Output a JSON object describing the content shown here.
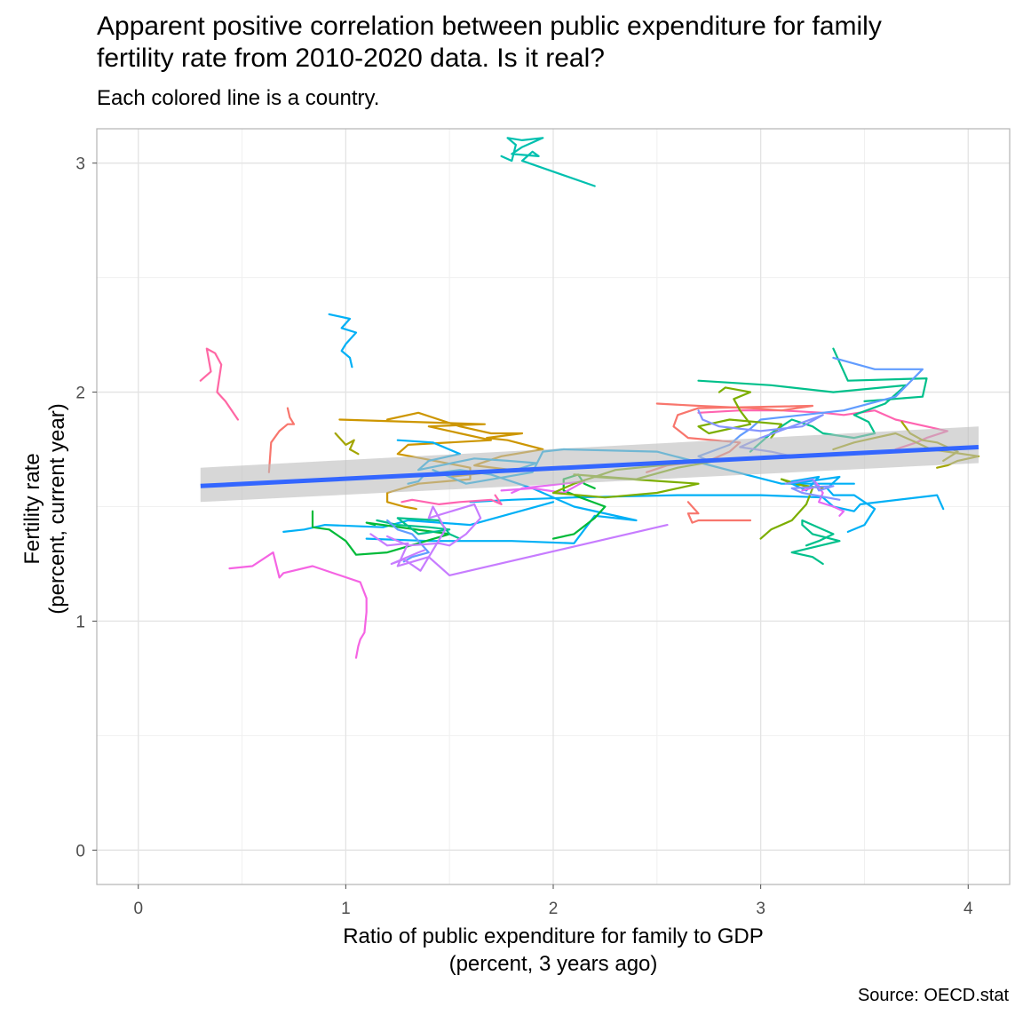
{
  "title_line1": "Apparent positive correlation between public expenditure for family",
  "title_line2": "fertility rate from 2010-2020 data. Is it real?",
  "subtitle": "Each colored line is a country.",
  "caption": "Source: OECD.stat",
  "chart_data": {
    "type": "line",
    "xlabel_line1": "Ratio of public expenditure for family to GDP",
    "xlabel_line2": "(percent, 3 years ago)",
    "ylabel_line1": "Fertility rate",
    "ylabel_line2": "(percent, current year)",
    "xlim": [
      -0.2,
      4.2
    ],
    "ylim": [
      -0.15,
      3.15
    ],
    "xticks": [
      0,
      1,
      2,
      3,
      4
    ],
    "yticks": [
      0,
      1,
      2,
      3
    ],
    "grid": true,
    "legend": "none",
    "trend": {
      "color": "#3366ff",
      "band_color": "#bdbdbd",
      "x": [
        0.3,
        4.05
      ],
      "y": [
        1.59,
        1.76
      ],
      "lower": [
        1.52,
        1.69
      ],
      "upper": [
        1.67,
        1.85
      ]
    },
    "series": [
      {
        "color": "#00c0af",
        "x": [
          1.75,
          1.8,
          1.82,
          1.78,
          1.85,
          1.95,
          1.85,
          1.8,
          1.93,
          1.9,
          1.85,
          2.2
        ],
        "y": [
          3.03,
          3.01,
          3.08,
          3.11,
          3.1,
          3.11,
          3.07,
          3.04,
          3.03,
          3.05,
          3.01,
          2.9
        ]
      },
      {
        "color": "#00b0f6",
        "x": [
          0.92,
          1.02,
          0.98,
          1.05,
          1.0,
          0.98,
          1.02,
          1.03
        ],
        "y": [
          2.34,
          2.32,
          2.28,
          2.26,
          2.21,
          2.18,
          2.15,
          2.11
        ]
      },
      {
        "color": "#ff67a4",
        "x": [
          0.3,
          0.35,
          0.33,
          0.37,
          0.4,
          0.38,
          0.42,
          0.48
        ],
        "y": [
          2.05,
          2.09,
          2.19,
          2.17,
          2.12,
          2.0,
          1.96,
          1.88
        ]
      },
      {
        "color": "#f8766d",
        "x": [
          0.63,
          0.64,
          0.68,
          0.72,
          0.75,
          0.73,
          0.72
        ],
        "y": [
          1.65,
          1.78,
          1.83,
          1.86,
          1.86,
          1.89,
          1.93
        ]
      },
      {
        "color": "#cd9600",
        "x": [
          0.97,
          1.67,
          1.4,
          1.55,
          1.7,
          1.3,
          1.25,
          1.37,
          1.6,
          1.6,
          1.35,
          1.2,
          1.2,
          1.28,
          1.34
        ],
        "y": [
          1.88,
          1.86,
          1.85,
          1.82,
          1.79,
          1.77,
          1.73,
          1.71,
          1.67,
          1.62,
          1.6,
          1.56,
          1.52,
          1.5,
          1.49
        ]
      },
      {
        "color": "#cd9600",
        "x": [
          1.2,
          1.35,
          1.55,
          1.7,
          1.85,
          1.68,
          1.78,
          1.95,
          1.75,
          1.62,
          1.8,
          1.5
        ],
        "y": [
          1.88,
          1.91,
          1.85,
          1.82,
          1.82,
          1.8,
          1.79,
          1.75,
          1.72,
          1.68,
          1.66,
          1.63
        ]
      },
      {
        "color": "#a3a500",
        "x": [
          0.95,
          1.0,
          1.04,
          1.02,
          1.06
        ],
        "y": [
          1.82,
          1.77,
          1.79,
          1.75,
          1.73
        ]
      },
      {
        "color": "#f564e3",
        "x": [
          0.44,
          0.55,
          0.65,
          0.68,
          0.7,
          0.84,
          1.07,
          1.1,
          1.1,
          1.09,
          1.07,
          1.06,
          1.05
        ],
        "y": [
          1.23,
          1.24,
          1.3,
          1.19,
          1.21,
          1.24,
          1.17,
          1.1,
          1.04,
          0.95,
          0.92,
          0.89,
          0.84
        ]
      },
      {
        "color": "#00b0f6",
        "x": [
          1.25,
          1.42,
          1.55,
          1.4,
          1.35,
          1.62,
          1.78,
          1.92,
          1.82
        ],
        "y": [
          1.79,
          1.78,
          1.73,
          1.7,
          1.66,
          1.71,
          1.7,
          1.69,
          1.66
        ]
      },
      {
        "color": "#00b0f6",
        "x": [
          1.42,
          1.58,
          1.9,
          1.95,
          2.05,
          2.5,
          3.1,
          3.45
        ],
        "y": [
          1.66,
          1.6,
          1.65,
          1.74,
          1.75,
          1.74,
          1.6,
          1.6
        ]
      },
      {
        "color": "#00b0f6",
        "x": [
          1.6,
          1.8,
          2.1,
          2.6,
          3.0,
          3.3,
          3.35,
          3.45,
          3.48,
          3.85,
          3.88
        ],
        "y": [
          1.52,
          1.53,
          1.54,
          1.55,
          1.55,
          1.54,
          1.5,
          1.48,
          1.51,
          1.55,
          1.49
        ]
      },
      {
        "color": "#00b0f6",
        "x": [
          0.7,
          0.8,
          0.9,
          1.18,
          1.3,
          1.6,
          2.0
        ],
        "y": [
          1.39,
          1.4,
          1.42,
          1.41,
          1.44,
          1.42,
          1.52
        ]
      },
      {
        "color": "#00b0f6",
        "x": [
          1.1,
          1.4,
          1.8,
          2.1,
          2.2,
          2.4,
          2.1,
          1.9,
          1.7,
          1.55,
          1.38,
          1.35,
          1.3
        ],
        "y": [
          1.36,
          1.35,
          1.35,
          1.34,
          1.46,
          1.44,
          1.5,
          1.58,
          1.64,
          1.66,
          1.64,
          1.61,
          1.6
        ]
      },
      {
        "color": "#00ba38",
        "x": [
          0.84,
          0.84,
          0.92,
          1.0,
          1.05,
          1.2,
          1.5,
          1.1,
          1.14
        ],
        "y": [
          1.48,
          1.41,
          1.4,
          1.35,
          1.29,
          1.3,
          1.38,
          1.43,
          1.42
        ]
      },
      {
        "color": "#00ba38",
        "x": [
          2.0,
          2.1,
          2.2,
          2.25,
          2.13,
          2.05,
          2.05,
          2.12,
          2.15,
          2.2
        ],
        "y": [
          1.36,
          1.38,
          1.45,
          1.5,
          1.54,
          1.57,
          1.62,
          1.64,
          1.6,
          1.58
        ]
      },
      {
        "color": "#00c08b",
        "x": [
          1.15,
          1.25,
          1.4,
          1.5,
          1.35,
          1.25,
          1.45,
          1.5,
          1.55
        ],
        "y": [
          1.44,
          1.42,
          1.41,
          1.4,
          1.38,
          1.45,
          1.44,
          1.38,
          1.36
        ]
      },
      {
        "color": "#619cff",
        "x": [
          1.2,
          1.25,
          1.32,
          1.37,
          1.4,
          1.32,
          1.28
        ],
        "y": [
          1.44,
          1.4,
          1.38,
          1.33,
          1.3,
          1.28,
          1.26
        ]
      },
      {
        "color": "#c77cff",
        "x": [
          1.2,
          1.3,
          1.45,
          1.5,
          1.58,
          1.65,
          1.62,
          1.4,
          1.42,
          1.48,
          1.36,
          1.28,
          1.22,
          1.35,
          1.38
        ],
        "y": [
          1.37,
          1.33,
          1.34,
          1.33,
          1.38,
          1.45,
          1.51,
          1.45,
          1.5,
          1.4,
          1.22,
          1.27,
          1.25,
          1.3,
          1.31
        ]
      },
      {
        "color": "#c77cff",
        "x": [
          1.12,
          1.2,
          1.3,
          1.28,
          1.25,
          1.4,
          1.45,
          1.5,
          2.55
        ],
        "y": [
          1.38,
          1.33,
          1.34,
          1.3,
          1.24,
          1.28,
          1.24,
          1.2,
          1.42
        ]
      },
      {
        "color": "#ff64b0",
        "x": [
          1.27,
          1.32,
          1.45,
          1.55,
          1.7,
          1.75,
          1.72
        ],
        "y": [
          1.52,
          1.53,
          1.51,
          1.52,
          1.53,
          1.51,
          1.55
        ]
      },
      {
        "color": "#ff64b0",
        "x": [
          2.7,
          2.9,
          3.1,
          3.3,
          3.4,
          3.55,
          3.65,
          3.75,
          3.9,
          3.8,
          3.75,
          3.65
        ],
        "y": [
          1.91,
          1.92,
          1.92,
          1.91,
          1.9,
          1.92,
          1.88,
          1.86,
          1.83,
          1.8,
          1.78,
          1.75
        ]
      },
      {
        "color": "#e76bf3",
        "x": [
          1.75,
          1.9,
          2.05,
          2.15,
          1.85,
          1.8
        ],
        "y": [
          1.57,
          1.58,
          1.56,
          1.61,
          1.58,
          1.56
        ]
      },
      {
        "color": "#f8766d",
        "x": [
          2.5,
          2.7,
          2.95,
          3.1,
          3.25,
          2.7,
          2.6,
          2.58,
          2.65,
          2.9,
          2.85,
          2.75,
          2.55,
          2.45
        ],
        "y": [
          1.95,
          1.94,
          1.93,
          1.92,
          1.94,
          1.93,
          1.9,
          1.85,
          1.8,
          1.78,
          1.74,
          1.7,
          1.68,
          1.65
        ]
      },
      {
        "color": "#f8766d",
        "x": [
          2.65,
          2.68,
          2.7,
          2.65,
          2.67,
          2.7,
          2.95
        ],
        "y": [
          1.52,
          1.49,
          1.47,
          1.47,
          1.43,
          1.44,
          1.44
        ]
      },
      {
        "color": "#00c08b",
        "x": [
          2.7,
          3.05,
          3.35,
          3.7,
          3.6,
          3.45,
          3.52,
          3.55,
          3.45,
          3.3,
          3.25,
          3.15,
          3.1,
          3.05,
          3.0,
          2.95
        ],
        "y": [
          2.05,
          2.03,
          2.0,
          2.03,
          1.95,
          1.9,
          1.87,
          1.82,
          1.8,
          1.82,
          1.85,
          1.88,
          1.85,
          1.82,
          1.78,
          1.74
        ]
      },
      {
        "color": "#00c08b",
        "x": [
          3.35,
          3.42,
          3.8,
          3.78,
          3.5
        ],
        "y": [
          2.19,
          2.05,
          2.06,
          1.98,
          1.96
        ]
      },
      {
        "color": "#619cff",
        "x": [
          3.35,
          3.55,
          3.78,
          3.65,
          3.4,
          3.0,
          2.95,
          2.9,
          2.85,
          2.7,
          2.75
        ],
        "y": [
          2.15,
          2.1,
          2.1,
          1.98,
          1.92,
          1.88,
          1.84,
          1.81,
          1.77,
          1.72,
          1.7
        ]
      },
      {
        "color": "#7cae00",
        "x": [
          2.8,
          2.83,
          2.95,
          2.87,
          2.9,
          2.95,
          2.75,
          2.7,
          2.85,
          3.1,
          3.05
        ],
        "y": [
          2.0,
          2.02,
          2.0,
          1.97,
          1.92,
          1.86,
          1.82,
          1.85,
          1.88,
          1.86,
          1.8
        ]
      },
      {
        "color": "#7cae00",
        "x": [
          2.1,
          2.4,
          2.6,
          2.85,
          2.3,
          2.1,
          2.0,
          2.25,
          2.5,
          2.7,
          2.2
        ],
        "y": [
          1.64,
          1.62,
          1.67,
          1.71,
          1.66,
          1.6,
          1.56,
          1.54,
          1.56,
          1.6,
          1.63
        ]
      },
      {
        "color": "#7cae00",
        "x": [
          3.3,
          3.15,
          3.1,
          3.25,
          3.22,
          3.15,
          3.05,
          3.0
        ],
        "y": [
          1.58,
          1.6,
          1.62,
          1.58,
          1.51,
          1.44,
          1.4,
          1.36
        ]
      },
      {
        "color": "#00b0f6",
        "x": [
          3.15,
          3.28,
          3.22,
          3.15,
          3.38,
          3.32,
          3.35,
          3.45,
          3.55,
          3.5,
          3.42
        ],
        "y": [
          1.61,
          1.63,
          1.57,
          1.6,
          1.63,
          1.58,
          1.55,
          1.55,
          1.49,
          1.42,
          1.39
        ]
      },
      {
        "color": "#00c08b",
        "x": [
          3.3,
          3.25,
          3.15,
          3.38,
          3.25,
          3.2,
          3.2,
          3.3,
          3.35,
          3.28,
          3.22
        ],
        "y": [
          1.25,
          1.28,
          1.3,
          1.35,
          1.38,
          1.42,
          1.44,
          1.4,
          1.38,
          1.35,
          1.33
        ]
      },
      {
        "color": "#a3a500",
        "x": [
          3.35,
          3.45,
          3.55,
          3.65,
          3.7,
          3.75,
          3.82,
          4.05,
          3.95,
          3.9,
          3.85
        ],
        "y": [
          1.75,
          1.78,
          1.8,
          1.82,
          1.8,
          1.78,
          1.75,
          1.72,
          1.7,
          1.68,
          1.67
        ]
      },
      {
        "color": "#a3a500",
        "x": [
          3.68,
          3.72,
          3.78,
          3.85,
          3.9,
          3.95,
          3.88
        ],
        "y": [
          1.87,
          1.82,
          1.79,
          1.78,
          1.76,
          1.74,
          1.7
        ]
      },
      {
        "color": "#e76bf3",
        "x": [
          3.2,
          3.28,
          3.25,
          3.3,
          3.28,
          3.35,
          3.4,
          3.38
        ],
        "y": [
          1.57,
          1.59,
          1.62,
          1.56,
          1.52,
          1.5,
          1.48,
          1.46
        ]
      },
      {
        "color": "#8494ff",
        "x": [
          2.7,
          2.72,
          2.8,
          3.0,
          3.2,
          3.3,
          3.0,
          2.9,
          3.05,
          3.15
        ],
        "y": [
          1.92,
          1.88,
          1.85,
          1.83,
          1.85,
          1.9,
          1.8,
          1.76,
          1.74,
          1.72
        ]
      },
      {
        "color": "#8494ff",
        "x": [
          3.12,
          3.25,
          3.28,
          3.35,
          3.15,
          3.2,
          3.38
        ],
        "y": [
          1.6,
          1.62,
          1.57,
          1.59,
          1.58,
          1.56,
          1.53
        ]
      }
    ]
  }
}
